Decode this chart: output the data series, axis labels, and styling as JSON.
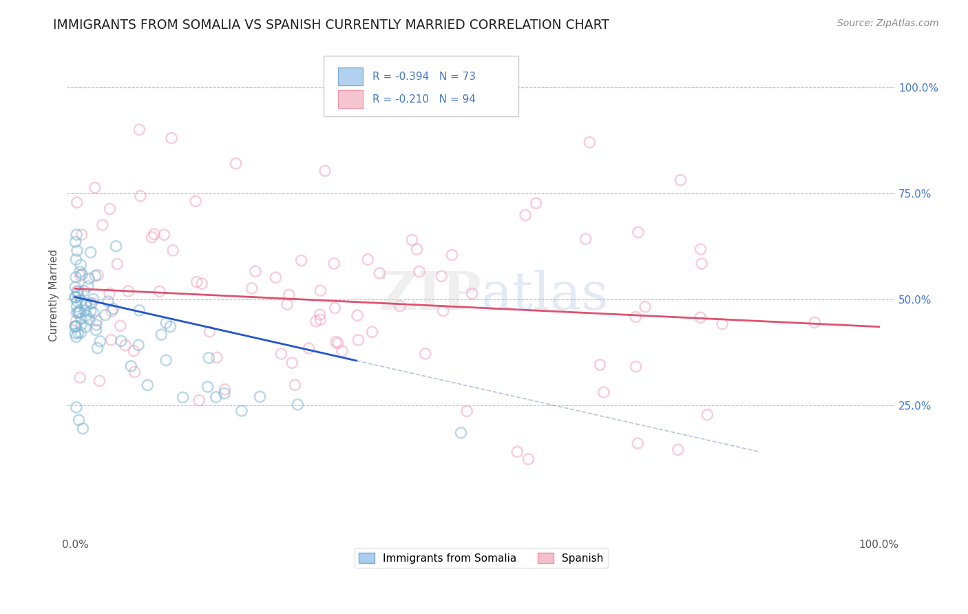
{
  "title": "IMMIGRANTS FROM SOMALIA VS SPANISH CURRENTLY MARRIED CORRELATION CHART",
  "source_text": "Source: ZipAtlas.com",
  "ylabel": "Currently Married",
  "watermark": "ZIPatlas",
  "xtick_labels": [
    "0.0%",
    "100.0%"
  ],
  "ytick_labels": [
    "25.0%",
    "50.0%",
    "75.0%",
    "100.0%"
  ],
  "ytick_positions": [
    0.25,
    0.5,
    0.75,
    1.0
  ],
  "legend_label1": "Immigrants from Somalia",
  "legend_label2": "Spanish",
  "blue_color": "#7ab3d4",
  "pink_color": "#f0a0b8",
  "blue_line_color": "#2255cc",
  "pink_line_color": "#e05070",
  "dot_size": 120,
  "dot_alpha": 0.5,
  "background_color": "#ffffff",
  "grid_color": "#bbbbbb",
  "title_color": "#222222",
  "title_fontsize": 13.5,
  "source_fontsize": 10,
  "ylabel_fontsize": 11,
  "tick_label_color": "#4477cc",
  "seed": 12
}
